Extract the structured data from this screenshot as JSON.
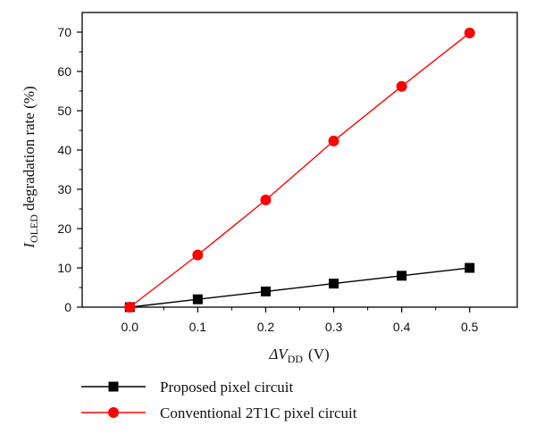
{
  "chart_data": {
    "type": "line",
    "xlabel_symbol": "ΔV",
    "xlabel_sub": "DD",
    "xlabel_unit": "(V)",
    "ylabel_symbol": "I",
    "ylabel_sub": "OLED",
    "ylabel_rest": "degradation rate (%)",
    "xlim": [
      -0.07,
      0.57
    ],
    "ylim": [
      0,
      75
    ],
    "x_ticks": [
      0.0,
      0.1,
      0.2,
      0.3,
      0.4,
      0.5
    ],
    "x_tick_labels": [
      "0.0",
      "0.1",
      "0.2",
      "0.3",
      "0.4",
      "0.5"
    ],
    "y_ticks": [
      0,
      10,
      20,
      30,
      40,
      50,
      60,
      70
    ],
    "y_tick_labels": [
      "0",
      "10",
      "20",
      "30",
      "40",
      "50",
      "60",
      "70"
    ],
    "x": [
      0.0,
      0.1,
      0.2,
      0.3,
      0.4,
      0.5
    ],
    "series": [
      {
        "name": "Proposed pixel circuit",
        "values": [
          0,
          2,
          4,
          6,
          8,
          10
        ],
        "color": "#000000",
        "marker": "square"
      },
      {
        "name": "Conventional 2T1C pixel circuit",
        "values": [
          0,
          13.3,
          27.3,
          42.3,
          56.2,
          69.8
        ],
        "color": "#ff0000",
        "marker": "circle"
      }
    ],
    "legend_position": "bottom"
  }
}
